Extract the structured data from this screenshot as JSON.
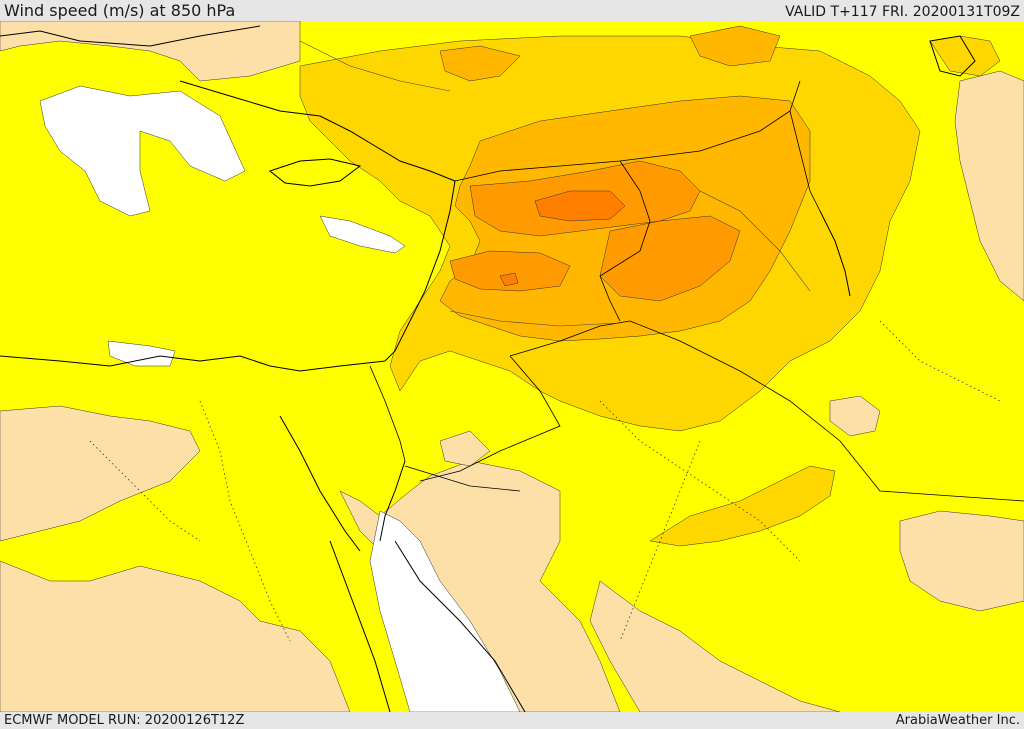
{
  "header": {
    "title": "Wind speed (m/s) at 850 hPa",
    "valid": "VALID T+117 FRI. 20200131T09Z"
  },
  "footer": {
    "model_run": "ECMWF MODEL RUN: 20200126T12Z",
    "credit": "ArabiaWeather Inc."
  },
  "map": {
    "colors": {
      "calm": "#ffffff",
      "light": "#fde0a8",
      "moderate": "#ffff00",
      "fresh": "#ffd700",
      "strong": "#ffb700",
      "very_strong": "#ff9a00",
      "gale": "#ff7f00"
    },
    "icons": [
      "coastline",
      "border-line",
      "contour-line"
    ]
  }
}
